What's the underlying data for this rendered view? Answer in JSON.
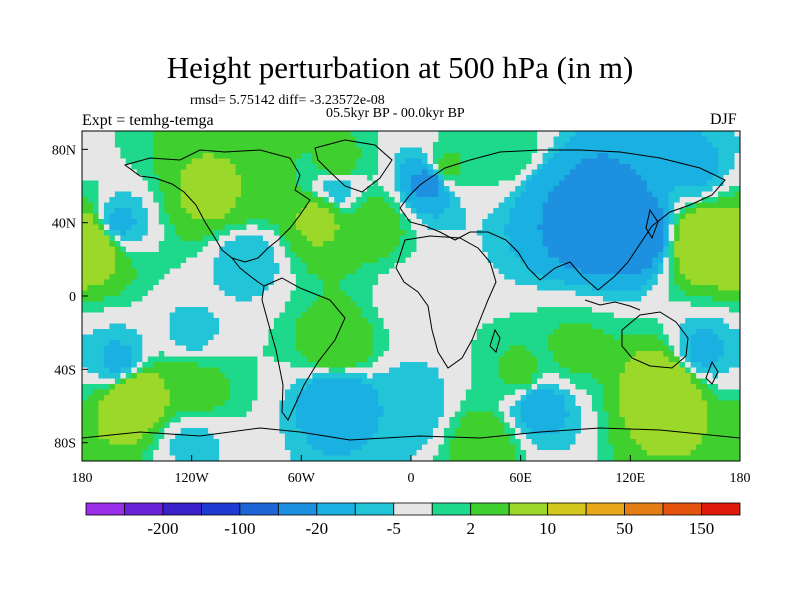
{
  "chart_data": {
    "type": "heatmap",
    "title": "Height perturbation at 500 hPa (in m)",
    "stats_text": "rmsd= 5.75142 diff= -3.23572e-08",
    "period": "05.5kyr BP - 00.0kyr BP",
    "experiment": "Expt = temhg-temga",
    "season": "DJF",
    "x_ticks": [
      {
        "value": -180,
        "label": "180"
      },
      {
        "value": -120,
        "label": "120W"
      },
      {
        "value": -60,
        "label": "60W"
      },
      {
        "value": 0,
        "label": "0"
      },
      {
        "value": 60,
        "label": "60E"
      },
      {
        "value": 120,
        "label": "120E"
      },
      {
        "value": 180,
        "label": "180"
      }
    ],
    "y_ticks": [
      {
        "value": 80,
        "label": "80N"
      },
      {
        "value": 40,
        "label": "40N"
      },
      {
        "value": 0,
        "label": "0"
      },
      {
        "value": -40,
        "label": "40S"
      },
      {
        "value": -80,
        "label": "80S"
      }
    ],
    "xlim": [
      -180,
      180
    ],
    "ylim": [
      -90,
      90
    ],
    "colorbar": {
      "levels": [
        -300,
        -200,
        -150,
        -100,
        -50,
        -20,
        -10,
        -5,
        -2,
        2,
        5,
        10,
        20,
        50,
        100,
        150,
        200,
        300
      ],
      "labels": [
        {
          "after_box": 1,
          "text": "-200"
        },
        {
          "after_box": 3,
          "text": "-100"
        },
        {
          "after_box": 5,
          "text": "-20"
        },
        {
          "after_box": 7,
          "text": "-5"
        },
        {
          "after_box": 9,
          "text": "2"
        },
        {
          "after_box": 11,
          "text": "10"
        },
        {
          "after_box": 13,
          "text": "50"
        },
        {
          "after_box": 15,
          "text": "150"
        }
      ],
      "colors": [
        "#9b2ee8",
        "#6a22d8",
        "#3a20c8",
        "#1f3ad0",
        "#1e66d8",
        "#1e90e0",
        "#1ab0e2",
        "#22c4d8",
        "#e6e6e6",
        "#1ed88c",
        "#3fcf2e",
        "#9bd82a",
        "#d2c81e",
        "#e8a81a",
        "#e47d14",
        "#e4540e",
        "#e01a0a"
      ]
    },
    "fields": [
      {
        "lon": 0,
        "lat": 0,
        "value": 0
      },
      {
        "lon": -110,
        "lat": 55,
        "value": 12
      },
      {
        "lon": -90,
        "lat": 60,
        "value": 10
      },
      {
        "lon": -40,
        "lat": 70,
        "value": 8
      },
      {
        "lon": -40,
        "lat": 60,
        "value": -5
      },
      {
        "lon": -50,
        "lat": 42,
        "value": 12
      },
      {
        "lon": -20,
        "lat": 40,
        "value": 8
      },
      {
        "lon": 20,
        "lat": 70,
        "value": 6
      },
      {
        "lon": 10,
        "lat": 62,
        "value": -12
      },
      {
        "lon": 50,
        "lat": 80,
        "value": 5
      },
      {
        "lon": 100,
        "lat": 42,
        "value": -20
      },
      {
        "lon": 125,
        "lat": 35,
        "value": -18
      },
      {
        "lon": 80,
        "lat": 50,
        "value": -10
      },
      {
        "lon": 155,
        "lat": 70,
        "value": -6
      },
      {
        "lon": 160,
        "lat": 30,
        "value": 20
      },
      {
        "lon": -175,
        "lat": 30,
        "value": 20
      },
      {
        "lon": -160,
        "lat": 40,
        "value": -6
      },
      {
        "lon": -90,
        "lat": 20,
        "value": -5
      },
      {
        "lon": -40,
        "lat": -28,
        "value": 10
      },
      {
        "lon": -120,
        "lat": -20,
        "value": -3
      },
      {
        "lon": -150,
        "lat": -55,
        "value": 20
      },
      {
        "lon": -120,
        "lat": -50,
        "value": 8
      },
      {
        "lon": -160,
        "lat": -35,
        "value": -6
      },
      {
        "lon": -40,
        "lat": -55,
        "value": -10
      },
      {
        "lon": 0,
        "lat": -60,
        "value": -5
      },
      {
        "lon": 70,
        "lat": -60,
        "value": -8
      },
      {
        "lon": 60,
        "lat": -42,
        "value": 6
      },
      {
        "lon": 140,
        "lat": -50,
        "value": 20
      },
      {
        "lon": 90,
        "lat": -30,
        "value": 6
      },
      {
        "lon": 160,
        "lat": -30,
        "value": -6
      },
      {
        "lon": 40,
        "lat": -80,
        "value": 8
      },
      {
        "lon": -120,
        "lat": -80,
        "value": -3
      }
    ]
  }
}
